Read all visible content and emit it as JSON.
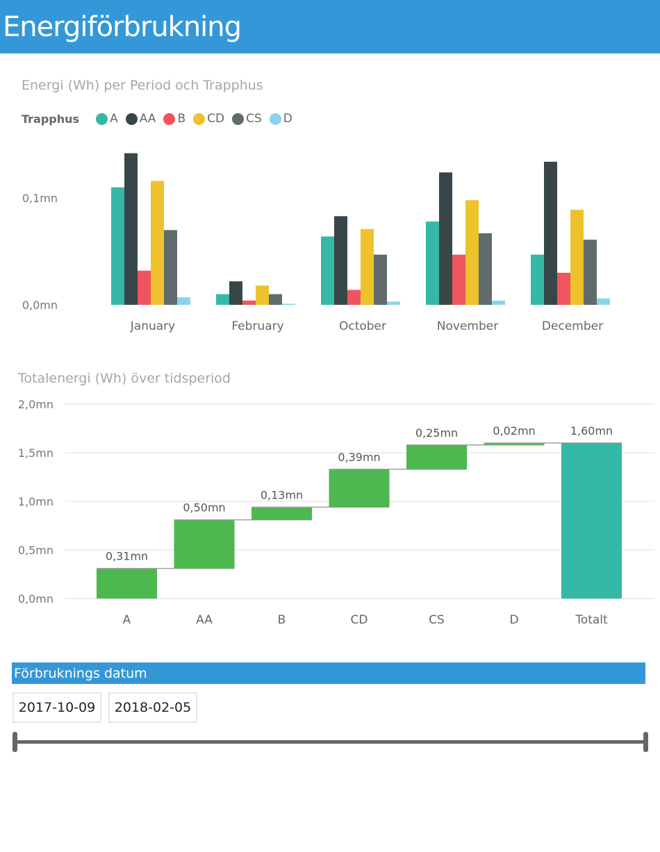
{
  "header": {
    "title": "Energiförbrukning"
  },
  "colors": {
    "A": "#35b8a6",
    "AA": "#374649",
    "B": "#f1545f",
    "CD": "#edc22d",
    "CS": "#5f6b6d",
    "D": "#8ad4eb",
    "increase": "#4cb84f",
    "total": "#35b8a6",
    "header": "#3498d8"
  },
  "legend": {
    "title": "Trapphus",
    "items": [
      {
        "label": "A",
        "color": "#35b8a6"
      },
      {
        "label": "AA",
        "color": "#374649"
      },
      {
        "label": "B",
        "color": "#f1545f"
      },
      {
        "label": "CD",
        "color": "#edc22d"
      },
      {
        "label": "CS",
        "color": "#5f6b6d"
      },
      {
        "label": "D",
        "color": "#8ad4eb"
      }
    ]
  },
  "chart_data": [
    {
      "type": "bar",
      "title": "Energi (Wh) per Period och Trapphus",
      "categories": [
        "January",
        "February",
        "October",
        "November",
        "December"
      ],
      "y_ticks": [
        {
          "value": 0,
          "label": "0,0mn"
        },
        {
          "value": 0.1,
          "label": "0,1mn"
        }
      ],
      "ylim": [
        0,
        0.145
      ],
      "series": [
        {
          "name": "A",
          "values": [
            0.11,
            0.01,
            0.064,
            0.078,
            0.047
          ]
        },
        {
          "name": "AA",
          "values": [
            0.142,
            0.022,
            0.083,
            0.124,
            0.134
          ]
        },
        {
          "name": "B",
          "values": [
            0.032,
            0.004,
            0.014,
            0.047,
            0.03
          ]
        },
        {
          "name": "CD",
          "values": [
            0.116,
            0.018,
            0.071,
            0.098,
            0.089
          ]
        },
        {
          "name": "CS",
          "values": [
            0.07,
            0.01,
            0.047,
            0.067,
            0.061
          ]
        },
        {
          "name": "D",
          "values": [
            0.007,
            0.001,
            0.003,
            0.004,
            0.006
          ]
        }
      ]
    },
    {
      "type": "waterfall",
      "title": "Totalenergi (Wh) över tidsperiod",
      "categories": [
        "A",
        "AA",
        "B",
        "CD",
        "CS",
        "D",
        "Totalt"
      ],
      "values": [
        0.31,
        0.5,
        0.13,
        0.39,
        0.25,
        0.02,
        1.6
      ],
      "data_labels": [
        "0,31mn",
        "0,50mn",
        "0,13mn",
        "0,39mn",
        "0,25mn",
        "0,02mn",
        "1,60mn"
      ],
      "y_ticks": [
        {
          "value": 0.0,
          "label": "0,0mn"
        },
        {
          "value": 0.5,
          "label": "0,5mn"
        },
        {
          "value": 1.0,
          "label": "1,0mn"
        },
        {
          "value": 1.5,
          "label": "1,5mn"
        },
        {
          "value": 2.0,
          "label": "2,0mn"
        }
      ],
      "ylim": [
        0,
        2.0
      ],
      "grid": true
    }
  ],
  "slicer": {
    "title": "Förbruknings datum",
    "start_date": "2017-10-09",
    "end_date": "2018-02-05"
  }
}
